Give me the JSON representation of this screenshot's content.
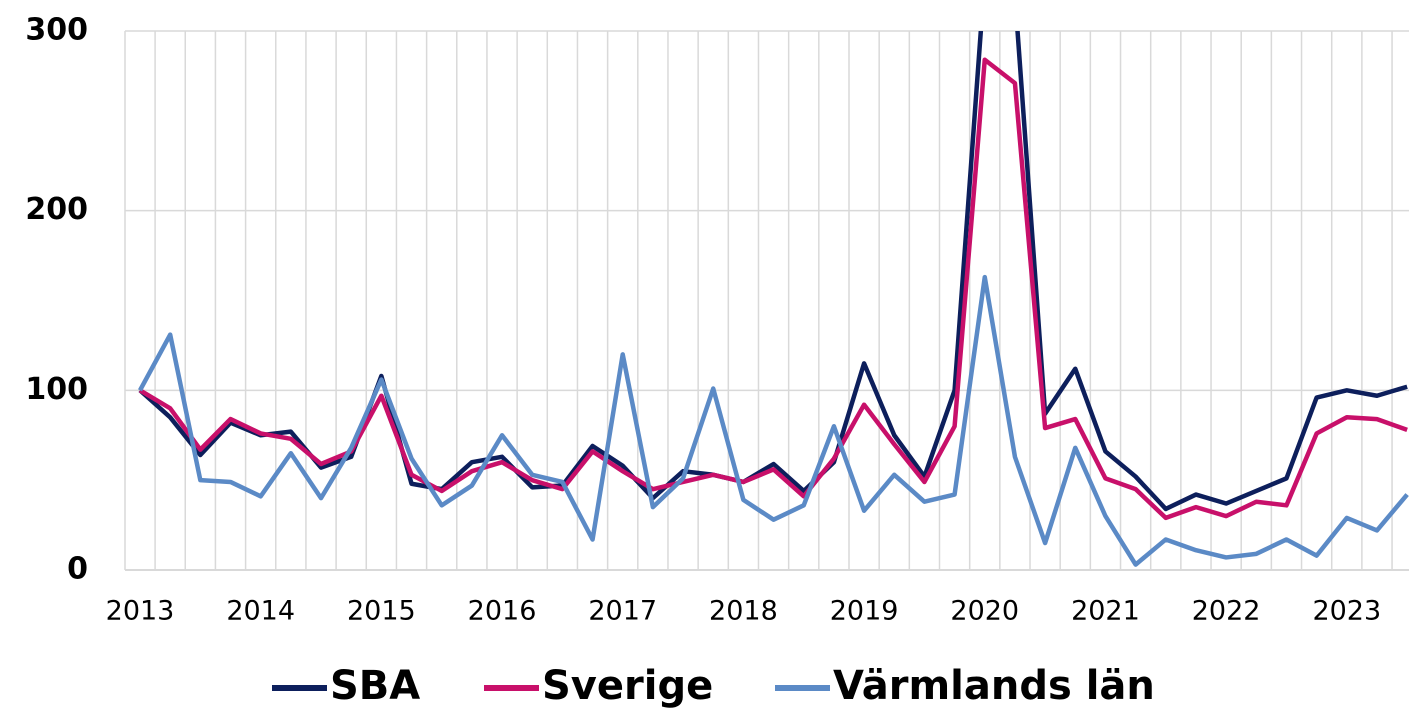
{
  "chart_data": {
    "type": "line",
    "categories": [
      "2013",
      null,
      null,
      null,
      "2014",
      null,
      null,
      null,
      "2015",
      null,
      null,
      null,
      "2016",
      null,
      null,
      null,
      "2017",
      null,
      null,
      null,
      "2018",
      null,
      null,
      null,
      "2019",
      null,
      null,
      null,
      "2020",
      null,
      null,
      null,
      "2021",
      null,
      null,
      null,
      "2022",
      null,
      null,
      null,
      "2023",
      null,
      null
    ],
    "series": [
      {
        "name": "SBA",
        "color": "#0d1f5c",
        "values": [
          100,
          85,
          64,
          82,
          75,
          77,
          57,
          63,
          108,
          48,
          45,
          60,
          63,
          46,
          47,
          69,
          58,
          40,
          55,
          53,
          49,
          59,
          44,
          60,
          115,
          75,
          52,
          100,
          330,
          320,
          87,
          112,
          66,
          52,
          34,
          42,
          37,
          44,
          51,
          96,
          100,
          97,
          102
        ]
      },
      {
        "name": "Sverige",
        "color": "#c8106a",
        "values": [
          100,
          90,
          67,
          84,
          76,
          73,
          59,
          66,
          97,
          53,
          44,
          55,
          60,
          50,
          45,
          66,
          55,
          45,
          49,
          53,
          49,
          56,
          41,
          62,
          92,
          70,
          49,
          80,
          284,
          271,
          79,
          84,
          51,
          45,
          29,
          35,
          30,
          38,
          36,
          76,
          85,
          84,
          78
        ]
      },
      {
        "name": "Värmlands län",
        "color": "#5b8ac6",
        "values": [
          100,
          131,
          50,
          49,
          41,
          65,
          40,
          68,
          106,
          62,
          36,
          47,
          75,
          53,
          49,
          17,
          120,
          35,
          51,
          101,
          39,
          28,
          36,
          80,
          33,
          53,
          38,
          42,
          163,
          63,
          15,
          68,
          30,
          3,
          17,
          11,
          7,
          9,
          17,
          8,
          29,
          22,
          42
        ]
      }
    ],
    "ylim": [
      0,
      300
    ],
    "yticks": [
      0,
      100,
      200,
      300
    ],
    "grid": true,
    "legend": "bottom"
  }
}
